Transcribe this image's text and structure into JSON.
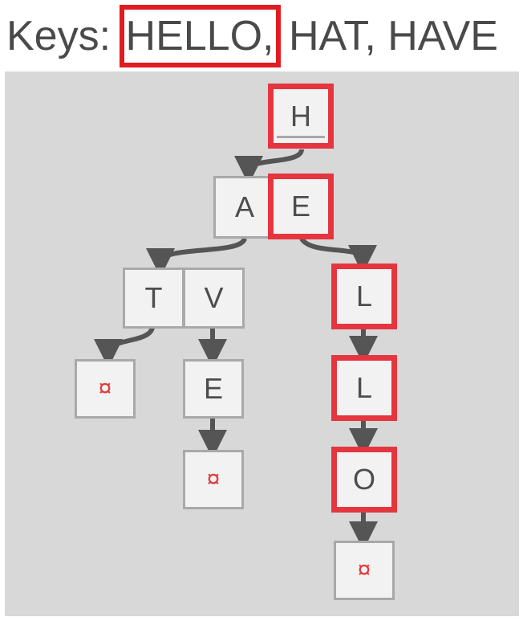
{
  "title": {
    "prefix": "Keys:",
    "highlighted_key": "HELLO,",
    "rest": "HAT, HAVE"
  },
  "trie": {
    "root": "H",
    "level1": [
      "A",
      "E"
    ],
    "level2_left": [
      "T",
      "V"
    ],
    "t_child": "¤",
    "v_child": "E",
    "v_e_child": "¤",
    "e_path": [
      "L",
      "L",
      "O"
    ],
    "e_path_end": "¤"
  },
  "colors": {
    "highlight": "#e5363f",
    "edge": "#555555",
    "terminator": "#e23b3b"
  }
}
